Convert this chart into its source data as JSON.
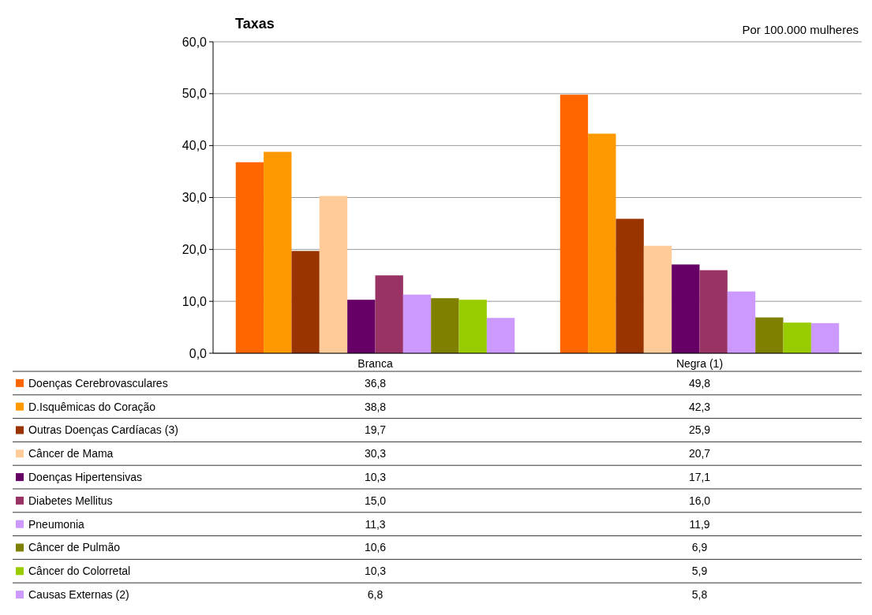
{
  "chart_data": {
    "type": "bar",
    "title": "Taxas",
    "annotations": [
      "Por 100.000 mulheres"
    ],
    "categories": [
      "Branca",
      "Negra (1)"
    ],
    "series": [
      {
        "name": "Doenças Cerebrovasculares",
        "color": "#ff6600",
        "values": [
          36.8,
          49.8
        ],
        "value_labels": [
          "36,8",
          "49,8"
        ]
      },
      {
        "name": "D.Isquêmicas do Coração",
        "color": "#ff9900",
        "values": [
          38.8,
          42.3
        ],
        "value_labels": [
          "38,8",
          "42,3"
        ]
      },
      {
        "name": "Outras Doenças Cardíacas (3)",
        "color": "#993300",
        "values": [
          19.7,
          25.9
        ],
        "value_labels": [
          "19,7",
          "25,9"
        ]
      },
      {
        "name": "Câncer de Mama",
        "color": "#ffcc99",
        "values": [
          30.3,
          20.7
        ],
        "value_labels": [
          "30,3",
          "20,7"
        ]
      },
      {
        "name": "Doenças Hipertensivas",
        "color": "#660066",
        "values": [
          10.3,
          17.1
        ],
        "value_labels": [
          "10,3",
          "17,1"
        ]
      },
      {
        "name": "Diabetes Mellitus",
        "color": "#993366",
        "values": [
          15.0,
          16.0
        ],
        "value_labels": [
          "15,0",
          "16,0"
        ]
      },
      {
        "name": "Pneumonia",
        "color": "#cc99ff",
        "values": [
          11.3,
          11.9
        ],
        "value_labels": [
          "11,3",
          "11,9"
        ]
      },
      {
        "name": "Câncer de Pulmão",
        "color": "#808000",
        "values": [
          10.6,
          6.9
        ],
        "value_labels": [
          "10,6",
          "6,9"
        ]
      },
      {
        "name": "Câncer do Colorretal",
        "color": "#99cc00",
        "values": [
          10.3,
          5.9
        ],
        "value_labels": [
          "10,3",
          "5,9"
        ]
      },
      {
        "name": "Causas Externas (2)",
        "color": "#cc99ff",
        "values": [
          6.8,
          5.8
        ],
        "value_labels": [
          "6,8",
          "5,8"
        ]
      }
    ],
    "ylim": [
      0,
      60
    ],
    "yticks": [
      {
        "value": 0,
        "label": "0,0"
      },
      {
        "value": 10,
        "label": "10,0"
      },
      {
        "value": 20,
        "label": "20,0"
      },
      {
        "value": 30,
        "label": "30,0"
      },
      {
        "value": 40,
        "label": "40,0"
      },
      {
        "value": 50,
        "label": "50,0"
      },
      {
        "value": 60,
        "label": "60,0"
      }
    ],
    "grid": "y",
    "legend": "bottom"
  }
}
